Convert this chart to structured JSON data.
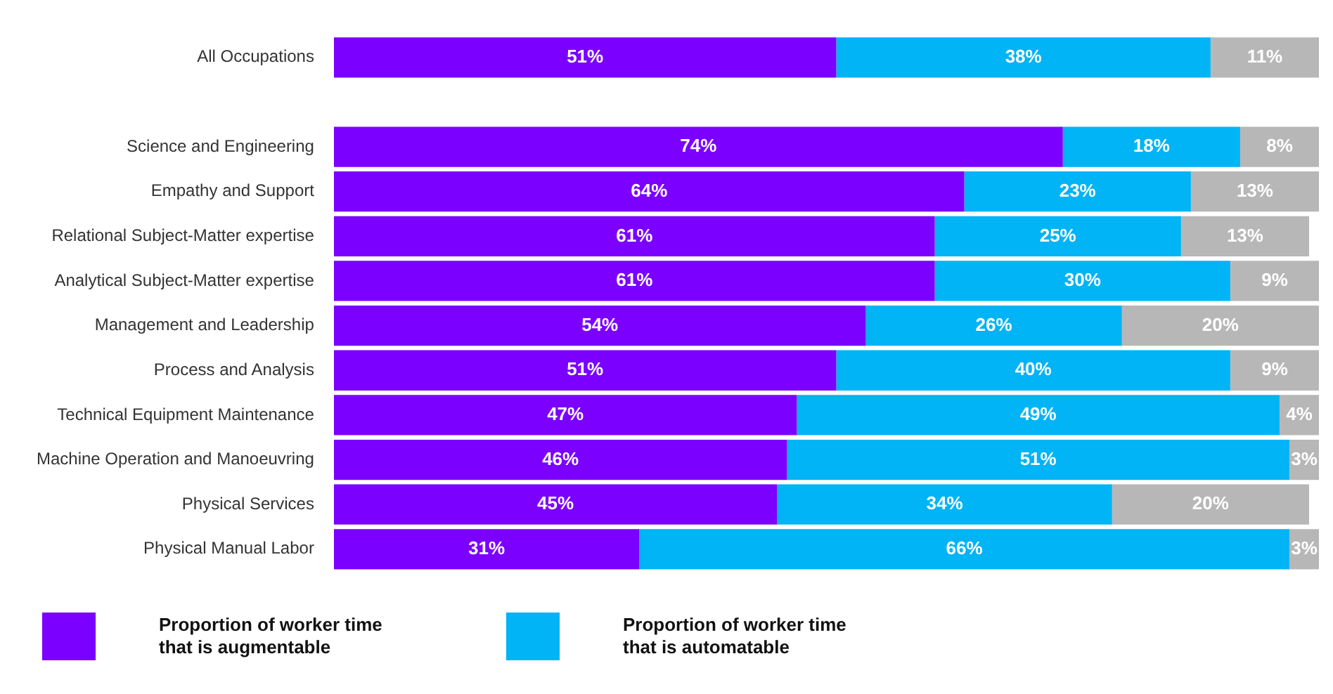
{
  "chart_data": {
    "type": "bar",
    "orientation": "horizontal",
    "stacked": true,
    "legend": "bottom left",
    "tick_labels": "y",
    "xlim": [
      0,
      100
    ],
    "categories": [
      "All Occupations",
      null,
      "Science and Engineering",
      "Empathy and Support",
      "Relational Subject-Matter expertise",
      "Analytical Subject-Matter expertise",
      "Management and Leadership",
      "Process and Analysis",
      "Technical Equipment Maintenance",
      "Machine Operation and Manoeuvring",
      "Physical Services",
      "Physical Manual Labor"
    ],
    "series": [
      {
        "name": "Proportion of worker time that is augmentable",
        "color": "#7b00ff",
        "values": [
          51,
          null,
          74,
          64,
          61,
          61,
          54,
          51,
          47,
          46,
          45,
          31
        ],
        "value_labels": [
          "51%",
          null,
          "74%",
          "64%",
          "61%",
          "61%",
          "54%",
          "51%",
          "47%",
          "46%",
          "45%",
          "31%"
        ]
      },
      {
        "name": "Proportion of worker time that is automatable",
        "color": "#00b4f5",
        "values": [
          38,
          null,
          18,
          23,
          25,
          30,
          26,
          40,
          49,
          51,
          34,
          66
        ],
        "value_labels": [
          "38%",
          null,
          "18%",
          "23%",
          "25%",
          "30%",
          "26%",
          "40%",
          "49%",
          "51%",
          "34%",
          "66%"
        ]
      },
      {
        "color": "#b7b7b7",
        "values": [
          11,
          null,
          8,
          13,
          13,
          9,
          20,
          9,
          4,
          3,
          20,
          3
        ],
        "value_labels": [
          "11%",
          null,
          "8%",
          "13%",
          "13%",
          "9%",
          "20%",
          "9%",
          "4%",
          "3%",
          "20%",
          "3%"
        ]
      }
    ]
  }
}
